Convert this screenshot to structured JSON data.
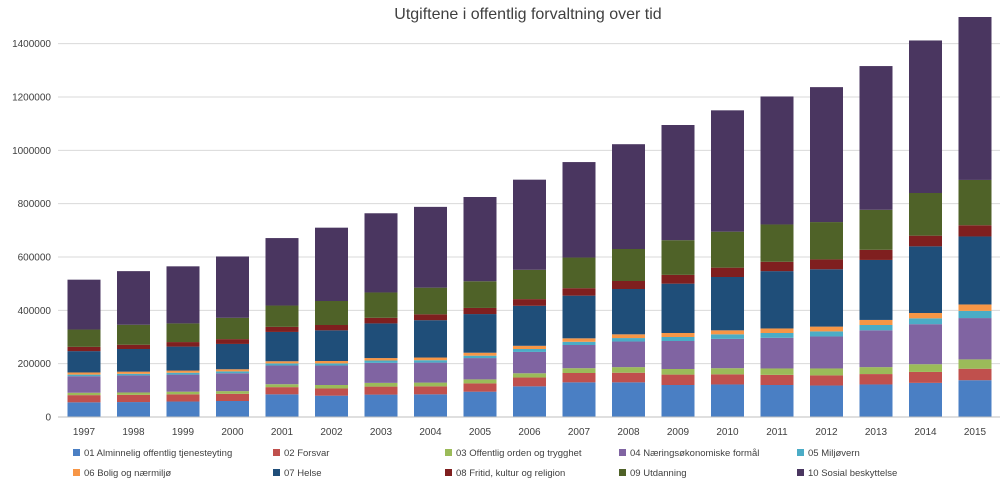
{
  "chart_data": {
    "type": "bar",
    "stacked": true,
    "title": "Utgiftene i offentlig forvaltning over tid",
    "xlabel": "",
    "ylabel": "",
    "ylim": [
      0,
      1500000
    ],
    "yticks": [
      "0",
      "200000",
      "400000",
      "600000",
      "800000",
      "1000000",
      "1200000",
      "1400000"
    ],
    "grid": true,
    "legend_position": "bottom",
    "categories": [
      "1997",
      "1998",
      "1999",
      "2000",
      "2001",
      "2002",
      "2003",
      "2004",
      "2005",
      "2006",
      "2007",
      "2008",
      "2009",
      "2010",
      "2011",
      "2012",
      "2013",
      "2014",
      "2015"
    ],
    "series": [
      {
        "name": "01 Alminnelig offentlig tjenesteyting",
        "color": "#4a7fc4",
        "values": [
          55000,
          56000,
          58000,
          60000,
          85000,
          80000,
          84000,
          85000,
          95000,
          115000,
          130000,
          130000,
          120000,
          122000,
          120000,
          118000,
          122000,
          128000,
          138000
        ]
      },
      {
        "name": "02 Forsvar",
        "color": "#c0504d",
        "values": [
          27000,
          27000,
          27000,
          27000,
          27000,
          27000,
          30000,
          30000,
          31000,
          33000,
          35000,
          36000,
          39000,
          38000,
          38000,
          38000,
          39000,
          41000,
          43000
        ]
      },
      {
        "name": "03 Offentlig orden og trygghet",
        "color": "#9bbb59",
        "values": [
          9000,
          9000,
          10000,
          10000,
          11000,
          13000,
          14000,
          14000,
          15000,
          16000,
          18000,
          21000,
          21000,
          23000,
          24000,
          26000,
          26000,
          29000,
          35000
        ]
      },
      {
        "name": "04 Næringsøkonomiske formål",
        "color": "#8064a2",
        "values": [
          62000,
          64000,
          64000,
          67000,
          70000,
          73000,
          75000,
          75000,
          80000,
          80000,
          87000,
          96000,
          105000,
          110000,
          115000,
          120000,
          138000,
          150000,
          155000
        ]
      },
      {
        "name": "05 Miljøvern",
        "color": "#4bacc6",
        "values": [
          6000,
          6000,
          7000,
          7000,
          8000,
          8000,
          9000,
          9000,
          9000,
          11000,
          12000,
          13000,
          15000,
          17000,
          18000,
          19000,
          20000,
          22000,
          27000
        ]
      },
      {
        "name": "06 Bolig og nærmiljø",
        "color": "#f79646",
        "values": [
          8000,
          8000,
          8000,
          8000,
          8000,
          9000,
          9000,
          10000,
          11000,
          12000,
          13000,
          14000,
          15000,
          15000,
          17000,
          18000,
          19000,
          20000,
          24000
        ]
      },
      {
        "name": "07 Helse",
        "color": "#1f4e79",
        "values": [
          80000,
          85000,
          90000,
          95000,
          110000,
          115000,
          130000,
          140000,
          145000,
          150000,
          160000,
          170000,
          185000,
          200000,
          215000,
          215000,
          225000,
          250000,
          255000
        ]
      },
      {
        "name": "08 Fritid, kultur og religion",
        "color": "#7f1f1f",
        "values": [
          16000,
          16000,
          17000,
          18000,
          19000,
          20000,
          21000,
          22000,
          23000,
          25000,
          28000,
          30000,
          33000,
          35000,
          35000,
          37000,
          38000,
          40000,
          42000
        ]
      },
      {
        "name": "09 Utdanning",
        "color": "#4f6228",
        "values": [
          65000,
          75000,
          70000,
          80000,
          80000,
          90000,
          95000,
          100000,
          100000,
          110000,
          115000,
          120000,
          130000,
          135000,
          140000,
          140000,
          150000,
          160000,
          170000
        ]
      },
      {
        "name": "10 Sosial beskyttelse",
        "color": "#4a3660",
        "values": [
          187000,
          201000,
          214000,
          230000,
          253000,
          275000,
          297000,
          303000,
          316000,
          338000,
          358000,
          393000,
          432000,
          455000,
          480000,
          506000,
          539000,
          572000,
          611000
        ]
      }
    ]
  }
}
